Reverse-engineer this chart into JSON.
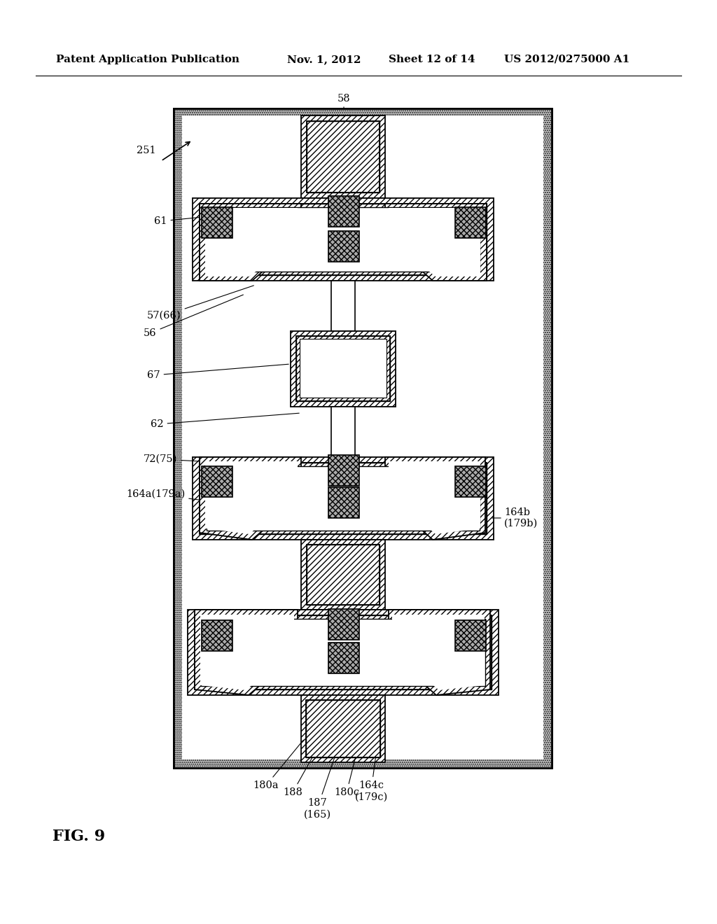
{
  "bg_color": "#ffffff",
  "header_text": "Patent Application Publication",
  "header_date": "Nov. 1, 2012",
  "header_sheet": "Sheet 12 of 14",
  "header_patent": "US 2012/0275000 A1",
  "fig_label": "FIG. 9",
  "diagram_label": "251",
  "label_58": "58",
  "label_61": "61",
  "label_56": "56",
  "label_57_66": "57(66)",
  "label_67": "67",
  "label_62": "62",
  "label_72_75": "72(75)",
  "label_164a": "164a(179a)",
  "label_164b": "164b\n(179b)",
  "label_180a": "180a",
  "label_188": "188",
  "label_187_165": "187\n(165)",
  "label_180c": "180c",
  "label_164c": "164c\n(179c)"
}
